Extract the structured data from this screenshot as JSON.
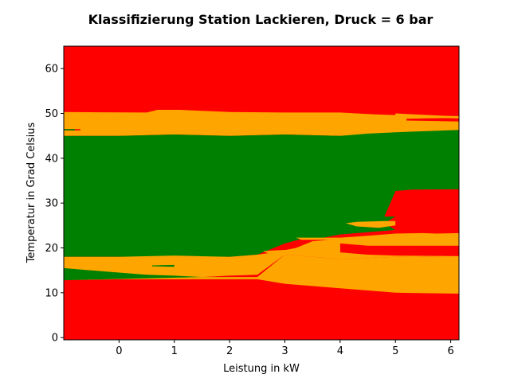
{
  "chart_data": {
    "type": "heatmap",
    "title": "Klassifizierung Station Lackieren, Druck = 6 bar",
    "xlabel": "Leistung in kW",
    "ylabel": "Temperatur in Grad Celsius",
    "xlim": [
      -1,
      6.15
    ],
    "ylim": [
      -0.5,
      65
    ],
    "xticks": [
      0,
      1,
      2,
      3,
      4,
      5,
      6
    ],
    "yticks": [
      0,
      10,
      20,
      30,
      40,
      50,
      60
    ],
    "classes": [
      {
        "name": "red",
        "color": "#ff0000"
      },
      {
        "name": "orange",
        "color": "#ffa500"
      },
      {
        "name": "green",
        "color": "#008000"
      }
    ],
    "regions": [
      {
        "class": "red",
        "points": [
          [
            -1,
            -0.5
          ],
          [
            6.15,
            -0.5
          ],
          [
            6.15,
            65
          ],
          [
            -1,
            65
          ]
        ]
      },
      {
        "class": "orange",
        "points": [
          [
            -1,
            50.3
          ],
          [
            0.5,
            50.2
          ],
          [
            0.7,
            50.8
          ],
          [
            1.1,
            50.8
          ],
          [
            2,
            50.3
          ],
          [
            3,
            50.2
          ],
          [
            4,
            50.2
          ],
          [
            4.6,
            49.8
          ],
          [
            5.3,
            49.5
          ],
          [
            6.15,
            49.4
          ],
          [
            6.15,
            46
          ],
          [
            5,
            45.5
          ],
          [
            4,
            45
          ],
          [
            3,
            45.3
          ],
          [
            2,
            45
          ],
          [
            1,
            45.3
          ],
          [
            0,
            45
          ],
          [
            -1,
            45
          ],
          [
            -1,
            46.2
          ],
          [
            -0.7,
            46.2
          ],
          [
            -0.7,
            46.5
          ],
          [
            -1,
            46.5
          ]
        ]
      },
      {
        "class": "green",
        "points": [
          [
            -1,
            45
          ],
          [
            0,
            45
          ],
          [
            1,
            45.3
          ],
          [
            2,
            45
          ],
          [
            3,
            45.3
          ],
          [
            4,
            45
          ],
          [
            4.5,
            45.5
          ],
          [
            5,
            45.8
          ],
          [
            6.15,
            46.3
          ],
          [
            6.15,
            32.8
          ],
          [
            5,
            32.6
          ],
          [
            4.8,
            27
          ],
          [
            6.15,
            27
          ],
          [
            6.15,
            24.5
          ],
          [
            5.5,
            24
          ],
          [
            5,
            24
          ],
          [
            4.5,
            23.5
          ],
          [
            4,
            23
          ],
          [
            3.7,
            22.3
          ],
          [
            3.3,
            22
          ],
          [
            3,
            21
          ],
          [
            2.5,
            18.5
          ],
          [
            2,
            18
          ],
          [
            1,
            18
          ],
          [
            0,
            18
          ],
          [
            -1,
            18
          ]
        ]
      },
      {
        "class": "orange",
        "points": [
          [
            -1,
            18
          ],
          [
            0,
            18
          ],
          [
            1,
            18.3
          ],
          [
            2,
            18
          ],
          [
            2.5,
            18.5
          ],
          [
            2.8,
            19
          ],
          [
            3.2,
            20
          ],
          [
            3.5,
            21.5
          ],
          [
            4,
            22
          ],
          [
            4.5,
            22.5
          ],
          [
            5,
            23
          ],
          [
            6.15,
            23.3
          ],
          [
            6.15,
            18.2
          ],
          [
            5,
            18
          ],
          [
            4,
            17.5
          ],
          [
            3.5,
            18
          ],
          [
            3,
            18.5
          ],
          [
            2.5,
            14
          ],
          [
            2,
            13.8
          ],
          [
            1.5,
            13.5
          ],
          [
            1,
            13.5
          ],
          [
            0.5,
            14
          ],
          [
            0,
            14
          ],
          [
            -1,
            15.5
          ]
        ]
      },
      {
        "class": "green",
        "points": [
          [
            -1,
            15.5
          ],
          [
            -0.5,
            15
          ],
          [
            0,
            14.5
          ],
          [
            0.5,
            14
          ],
          [
            1,
            13.8
          ],
          [
            1.5,
            13.5
          ],
          [
            2,
            13.5
          ],
          [
            2.5,
            13.3
          ],
          [
            2.5,
            13
          ],
          [
            2,
            13
          ],
          [
            1,
            13
          ],
          [
            0,
            13
          ],
          [
            -1,
            12.8
          ]
        ]
      },
      {
        "class": "orange",
        "points": [
          [
            -1,
            12.8
          ],
          [
            0,
            13
          ],
          [
            1,
            13
          ],
          [
            2,
            13
          ],
          [
            2.5,
            13
          ],
          [
            3,
            12
          ],
          [
            4,
            11
          ],
          [
            5,
            10
          ],
          [
            6.15,
            9.8
          ],
          [
            6.15,
            18.2
          ],
          [
            5,
            18
          ],
          [
            4,
            17.5
          ],
          [
            3,
            18.5
          ],
          [
            2.5,
            13.5
          ],
          [
            2,
            13.5
          ],
          [
            1.5,
            13.5
          ]
        ]
      },
      {
        "class": "red",
        "points": [
          [
            4,
            21
          ],
          [
            4.5,
            20.5
          ],
          [
            5,
            20.5
          ],
          [
            6.15,
            20.5
          ],
          [
            6.15,
            18.2
          ],
          [
            5,
            18.3
          ],
          [
            4.5,
            18.5
          ],
          [
            4,
            19
          ]
        ]
      },
      {
        "class": "red",
        "points": [
          [
            5,
            27
          ],
          [
            6.15,
            27.2
          ],
          [
            6.15,
            23.5
          ],
          [
            5.5,
            23.8
          ],
          [
            5,
            24
          ],
          [
            4.8,
            25.5
          ]
        ]
      },
      {
        "class": "orange",
        "points": [
          [
            4.3,
            25.8
          ],
          [
            4.8,
            26
          ],
          [
            5,
            26
          ],
          [
            5,
            25
          ],
          [
            4.7,
            24.5
          ],
          [
            4.3,
            24.8
          ],
          [
            4.1,
            25.5
          ]
        ]
      },
      {
        "class": "orange",
        "points": [
          [
            3.2,
            22.3
          ],
          [
            4,
            22.3
          ],
          [
            4.5,
            22.7
          ],
          [
            5,
            23.2
          ],
          [
            5.5,
            23.3
          ],
          [
            6.15,
            23
          ],
          [
            6.15,
            22.3
          ],
          [
            5.5,
            22.5
          ],
          [
            5,
            22.3
          ],
          [
            4.5,
            22
          ],
          [
            4,
            21.8
          ],
          [
            3.3,
            21.8
          ]
        ]
      },
      {
        "class": "orange",
        "points": [
          [
            2.6,
            19.3
          ],
          [
            3.2,
            19.7
          ],
          [
            3.7,
            19.9
          ],
          [
            4,
            20.1
          ],
          [
            4,
            19.4
          ],
          [
            3.5,
            19.3
          ],
          [
            3,
            19
          ],
          [
            2.7,
            18.8
          ]
        ]
      },
      {
        "class": "red",
        "points": [
          [
            5,
            32.2
          ],
          [
            6.15,
            32.2
          ],
          [
            6.15,
            33.1
          ],
          [
            5.3,
            33
          ],
          [
            5,
            32.7
          ]
        ]
      },
      {
        "class": "red",
        "points": [
          [
            5.2,
            48.4
          ],
          [
            6.15,
            48.2
          ],
          [
            6.15,
            49
          ],
          [
            5.5,
            48.9
          ],
          [
            5.2,
            48.8
          ]
        ]
      },
      {
        "class": "orange",
        "points": [
          [
            5,
            50
          ],
          [
            6.15,
            49.3
          ],
          [
            6.15,
            48.9
          ],
          [
            5.5,
            49.1
          ],
          [
            5,
            49.5
          ]
        ]
      },
      {
        "class": "green",
        "points": [
          [
            -1,
            46.2
          ],
          [
            -0.8,
            46.2
          ],
          [
            -0.8,
            46.5
          ],
          [
            -1,
            46.5
          ]
        ]
      },
      {
        "class": "orange",
        "points": [
          [
            1,
            15.8
          ],
          [
            1.5,
            15.9
          ],
          [
            1.5,
            16.2
          ],
          [
            1,
            16.3
          ],
          [
            0.6,
            16
          ]
        ]
      },
      {
        "class": "green",
        "points": [
          [
            0.6,
            16.1
          ],
          [
            1,
            16.2
          ],
          [
            1,
            15.8
          ],
          [
            0.6,
            15.9
          ]
        ]
      }
    ]
  }
}
